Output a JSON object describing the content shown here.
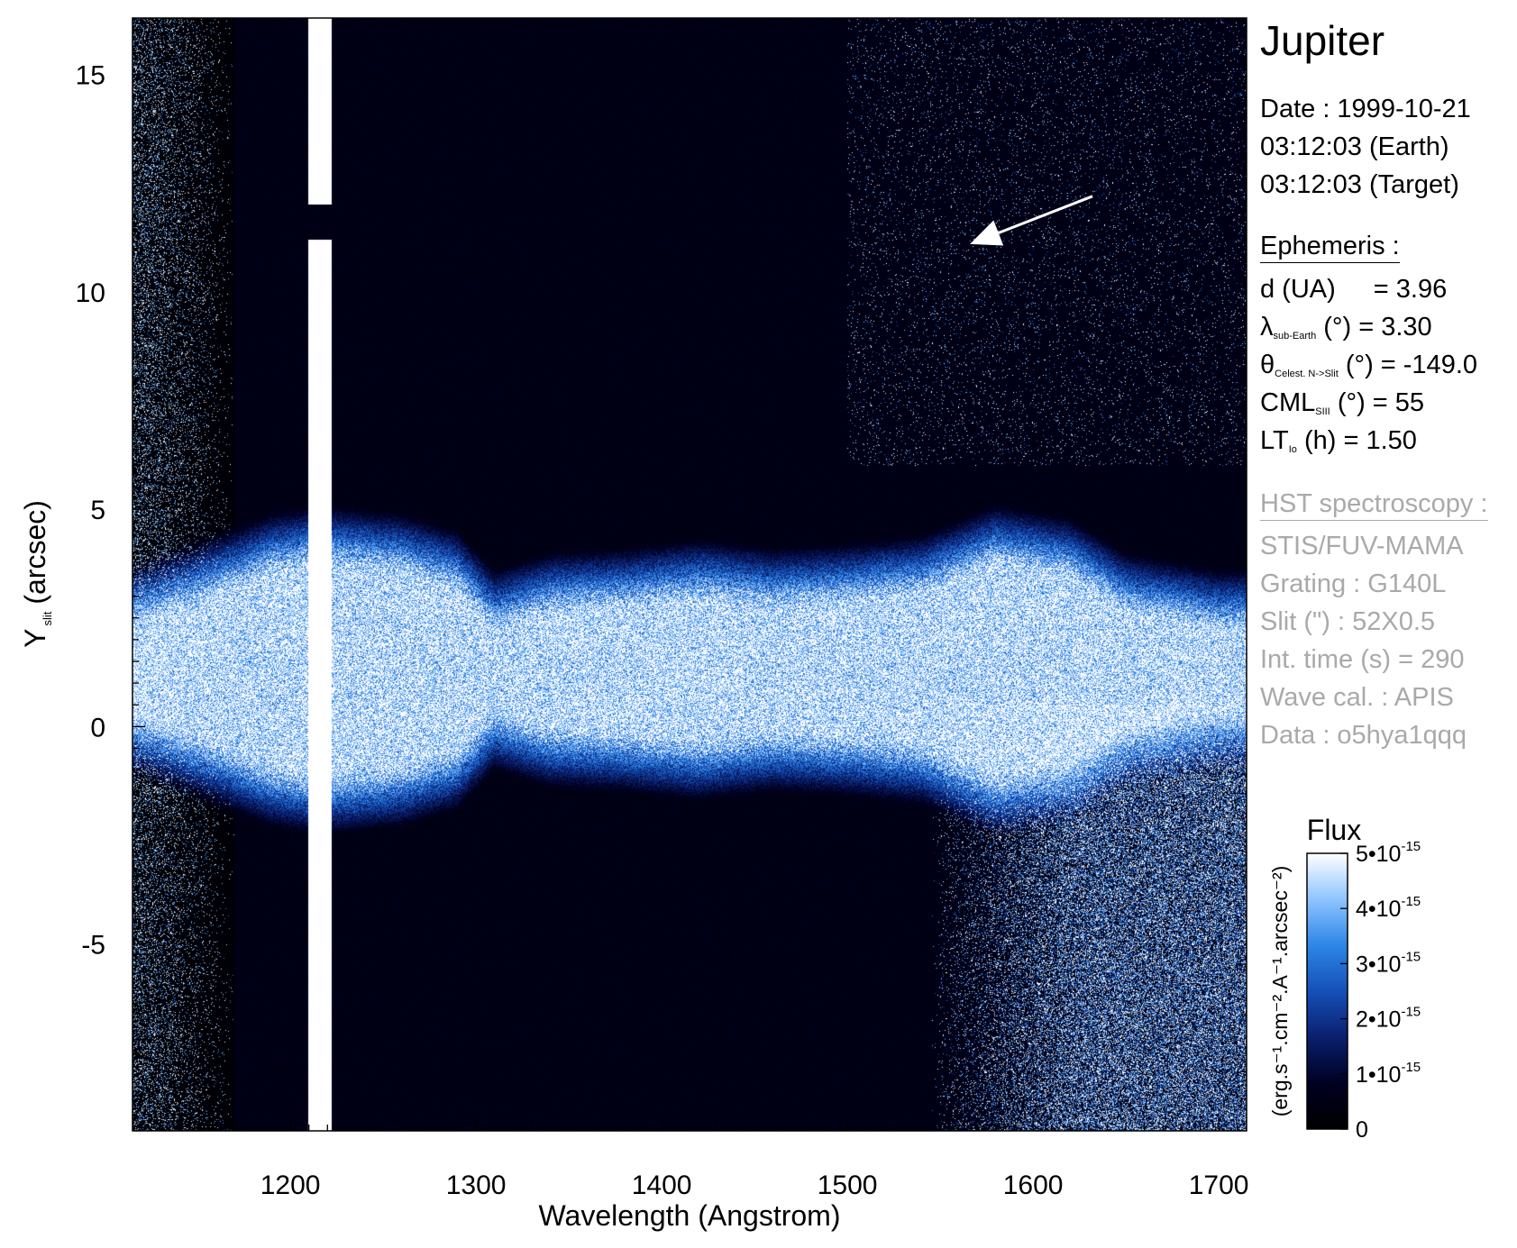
{
  "chart_data": {
    "type": "heatmap",
    "title": "Jupiter",
    "xlabel": "Wavelength (Angstrom)",
    "ylabel": {
      "base": "Y",
      "sub": "slit",
      "unit": "(arcsec)"
    },
    "xlim": [
      1115,
      1715
    ],
    "ylim": [
      -9.3,
      16.3
    ],
    "x_ticks": [
      1200,
      1300,
      1400,
      1500,
      1600,
      1700
    ],
    "x_tick_labels": [
      "1200",
      "1300",
      "1400",
      "1500",
      "1600",
      "1700"
    ],
    "y_ticks": [
      15,
      10,
      5,
      0,
      -5
    ],
    "y_tick_labels": [
      "15",
      "10",
      "5",
      "0",
      "-5"
    ],
    "colormap": [
      "#000000",
      "#000022",
      "#0a1f6e",
      "#1550b8",
      "#2d86e6",
      "#8fc4ff",
      "#ffffff"
    ],
    "features": {
      "lyman_alpha_band": {
        "x_center": 1216,
        "x_width": 13,
        "gap_y": [
          11.2,
          12.0
        ]
      },
      "emission_band": {
        "y_center": 1.3,
        "x": [
          1120,
          1150,
          1190,
          1216,
          1260,
          1290,
          1310,
          1340,
          1380,
          1420,
          1460,
          1500,
          1540,
          1580,
          1620,
          1650,
          1700
        ],
        "half_width": [
          1.0,
          1.5,
          2.2,
          2.4,
          2.2,
          1.8,
          0.9,
          1.3,
          1.4,
          1.6,
          1.4,
          1.5,
          1.7,
          2.4,
          2.1,
          1.3,
          0.9
        ]
      },
      "reflected_continuum_start_x": 1545,
      "arrow": {
        "from": [
          1632,
          12.2
        ],
        "to": [
          1566,
          11.1
        ]
      }
    },
    "colorbar": {
      "title": "Flux",
      "label": "(erg.s⁻¹.cm⁻².A⁻¹.arcsec⁻²)",
      "range": [
        0,
        5e-15
      ],
      "ticks": [
        {
          "value": 5e-15,
          "mant": "5•10",
          "exp": "-15"
        },
        {
          "value": 4e-15,
          "mant": "4•10",
          "exp": "-15"
        },
        {
          "value": 3e-15,
          "mant": "3•10",
          "exp": "-15"
        },
        {
          "value": 2e-15,
          "mant": "2•10",
          "exp": "-15"
        },
        {
          "value": 1e-15,
          "mant": "1•10",
          "exp": "-15"
        },
        {
          "value": 0,
          "mant": "0",
          "exp": ""
        }
      ]
    }
  },
  "info": {
    "title": "Jupiter",
    "date": "Date : 1999-10-21",
    "time_earth": "03:12:03 (Earth)",
    "time_target": "03:12:03 (Target)",
    "ephemeris_header": "Ephemeris :",
    "d_label": "d (UA)",
    "d_value": "= 3.96",
    "lambda_sym": "λ",
    "lambda_sub": "sub-Earth",
    "lambda_rest": "(°)  = 3.30",
    "theta_sym": "θ",
    "theta_sub": "Celest. N->Slit",
    "theta_rest": "(°) = -149.0",
    "cml_sym": "CML",
    "cml_sub": "SIII",
    "cml_rest": "(°) = 55",
    "lt_sym": "LT",
    "lt_sub": "Io",
    "lt_rest": "(h) = 1.50",
    "hst_header": "HST spectroscopy :",
    "instrument": "STIS/FUV-MAMA",
    "grating": "Grating : G140L",
    "slit": "Slit (\") : 52X0.5",
    "int_time": "Int. time (s) = 290",
    "wave_cal": "Wave cal. : APIS",
    "data": "Data : o5hya1qqq"
  }
}
